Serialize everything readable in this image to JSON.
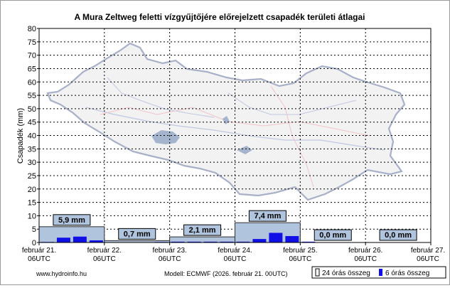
{
  "chart_data": {
    "type": "bar",
    "title": "A Mura Zeltweg feletti vízgyűjtőjére előrejelzett csapadék területi átlagai",
    "ylabel": "Csapadék (mm)",
    "ylim": [
      0,
      80
    ],
    "y_ticks": [
      "0",
      "5",
      "10",
      "15",
      "20",
      "25",
      "30",
      "35",
      "40",
      "45",
      "50",
      "55",
      "60",
      "65",
      "70",
      "75",
      "80"
    ],
    "grid": true,
    "x_ticks": [
      {
        "date": "február 21.",
        "hour": "06UTC"
      },
      {
        "date": "február 22.",
        "hour": "06UTC"
      },
      {
        "date": "február 23.",
        "hour": "06UTC"
      },
      {
        "date": "február 24.",
        "hour": "06UTC"
      },
      {
        "date": "február 25.",
        "hour": "06UTC"
      },
      {
        "date": "február 26.",
        "hour": "06UTC"
      },
      {
        "date": "február 27.",
        "hour": "06UTC"
      }
    ],
    "series": [
      {
        "name": "24 órás összeg",
        "values": [
          5.9,
          0.7,
          2.1,
          7.4,
          0.0,
          0.0
        ],
        "labels": [
          "5,9 mm",
          "0,7 mm",
          "2,1 mm",
          "7,4 mm",
          "0,0 mm",
          "0,0 mm"
        ]
      },
      {
        "name": "6 órás összeg",
        "values": [
          0.2,
          1.8,
          2.2,
          0.8,
          0.1,
          0.1,
          0.1,
          0.2,
          0.3,
          0.3,
          0.3,
          0.3,
          0.3,
          1.3,
          3.6,
          2.4,
          0.3,
          0,
          0,
          0,
          0,
          0,
          0,
          0
        ]
      }
    ],
    "colors": {
      "bar_24h": "#b0c4de",
      "bar_24h_border": "#2f2f2f",
      "bar_6h": "#1010e6",
      "label_box": "#b0c4de",
      "grid": "#000000"
    }
  },
  "footer": {
    "source": "www.hydroinfo.hu",
    "model": "Modell: ECMWF (2026. február 21. 00UTC)"
  }
}
